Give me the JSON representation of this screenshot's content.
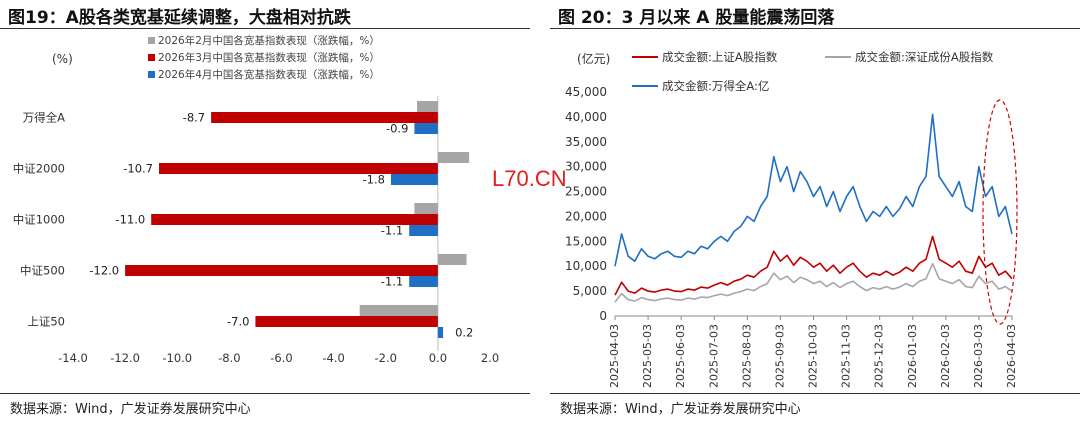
{
  "watermark": "L70.CN",
  "left_panel": {
    "title": "图19：A股各类宽基延续调整，大盘相对抗跌",
    "source": "数据来源：Wind，广发证券发展研究中心"
  },
  "right_panel": {
    "title": "图 20：3 月以来 A 股量能震荡回落",
    "source": "数据来源：Wind，广发证券发展研究中心"
  },
  "colors": {
    "gray": "#a6a6a6",
    "red": "#c00000",
    "blue": "#1f6fc5",
    "ellipse": "#d00000"
  },
  "chart_data": [
    {
      "type": "bar",
      "orientation": "horizontal",
      "title": "A股各类宽基延续调整，大盘相对抗跌",
      "unit": "(%)",
      "categories": [
        "万得全A",
        "中证2000",
        "中证1000",
        "中证500",
        "上证50"
      ],
      "series": [
        {
          "name": "2026年2月中国各宽基指数表现（涨跌幅，%）",
          "color": "#a6a6a6",
          "values": [
            -0.8,
            1.2,
            -0.9,
            1.1,
            -3.0
          ],
          "labels": [
            null,
            null,
            null,
            null,
            null
          ]
        },
        {
          "name": "2026年3月中国各宽基指数表现（涨跌幅，%）",
          "color": "#c00000",
          "values": [
            -8.7,
            -10.7,
            -11.0,
            -12.0,
            -7.0
          ],
          "labels": [
            "-8.7",
            "-10.7",
            "-11.0",
            "-12.0",
            "-7.0"
          ]
        },
        {
          "name": "2026年4月中国各宽基指数表现（涨跌幅，%）",
          "color": "#1f6fc5",
          "values": [
            -0.9,
            -1.8,
            -1.1,
            -1.1,
            0.2
          ],
          "labels": [
            "-0.9",
            "-1.8",
            "-1.1",
            "-1.1",
            "0.2"
          ]
        }
      ],
      "xlim": [
        -14,
        2
      ],
      "xticks": [
        -14,
        -12,
        -10,
        -8,
        -6,
        -4,
        -2,
        0,
        2
      ],
      "xtick_labels": [
        "-14.0",
        "-12.0",
        "-10.0",
        "-8.0",
        "-6.0",
        "-4.0",
        "-2.0",
        "0.0",
        "2.0"
      ]
    },
    {
      "type": "line",
      "title": "3 月以来 A 股量能震荡回落",
      "unit": "(亿元)",
      "ylim": [
        0,
        45000
      ],
      "yticks": [
        0,
        5000,
        10000,
        15000,
        20000,
        25000,
        30000,
        35000,
        40000,
        45000
      ],
      "ytick_labels": [
        "0",
        "5,000",
        "10,000",
        "15,000",
        "20,000",
        "25,000",
        "30,000",
        "35,000",
        "40,000",
        "45,000"
      ],
      "xlabels": [
        "2025-04-03",
        "2025-05-03",
        "2025-06-03",
        "2025-07-03",
        "2025-08-03",
        "2025-09-03",
        "2025-10-03",
        "2025-11-03",
        "2025-12-03",
        "2026-01-03",
        "2026-02-03",
        "2026-03-03",
        "2026-04-03"
      ],
      "x": [
        0,
        0.2,
        0.4,
        0.6,
        0.8,
        1,
        1.2,
        1.4,
        1.6,
        1.8,
        2,
        2.2,
        2.4,
        2.6,
        2.8,
        3,
        3.2,
        3.4,
        3.6,
        3.8,
        4,
        4.2,
        4.4,
        4.6,
        4.8,
        5,
        5.2,
        5.4,
        5.6,
        5.8,
        6,
        6.2,
        6.4,
        6.6,
        6.8,
        7,
        7.2,
        7.4,
        7.6,
        7.8,
        8,
        8.2,
        8.4,
        8.6,
        8.8,
        9,
        9.2,
        9.4,
        9.6,
        9.8,
        10,
        10.2,
        10.4,
        10.6,
        10.8,
        11,
        11.2,
        11.4,
        11.6,
        11.8,
        12
      ],
      "series": [
        {
          "name": "成交金额:万得全A:亿",
          "color": "#1f6fc5",
          "values": [
            10000,
            16500,
            12000,
            11000,
            13500,
            12000,
            11500,
            12500,
            13000,
            12000,
            11800,
            13000,
            12500,
            14000,
            13500,
            15000,
            16000,
            15000,
            17000,
            18000,
            20000,
            19000,
            22000,
            24000,
            32000,
            27000,
            30000,
            25000,
            29000,
            27000,
            24000,
            26000,
            22000,
            25000,
            21000,
            24000,
            26000,
            22000,
            19000,
            21000,
            20000,
            22000,
            20000,
            21500,
            24000,
            22000,
            26000,
            28000,
            40500,
            28000,
            26000,
            24000,
            27000,
            22000,
            21000,
            30000,
            24000,
            26000,
            20000,
            22000,
            16500
          ]
        },
        {
          "name": "成交金额:上证A股指数",
          "color": "#c00000",
          "values": [
            4200,
            6800,
            5000,
            4600,
            5600,
            5000,
            4800,
            5200,
            5400,
            5000,
            4900,
            5400,
            5200,
            5800,
            5600,
            6200,
            6700,
            6200,
            7000,
            7400,
            8200,
            7800,
            9000,
            9800,
            13000,
            11000,
            12200,
            10200,
            11800,
            11000,
            9800,
            10600,
            9000,
            10200,
            8600,
            9800,
            10600,
            9000,
            7800,
            8600,
            8200,
            9000,
            8200,
            8800,
            9800,
            9000,
            10600,
            11400,
            16000,
            11400,
            10600,
            9800,
            11000,
            9000,
            8600,
            12000,
            9800,
            10600,
            8200,
            9000,
            7500
          ]
        },
        {
          "name": "成交金额:深证成份A股指数",
          "color": "#a6a6a6",
          "values": [
            2800,
            4500,
            3300,
            3000,
            3700,
            3300,
            3100,
            3400,
            3600,
            3300,
            3200,
            3600,
            3400,
            3800,
            3700,
            4100,
            4400,
            4100,
            4600,
            4900,
            5400,
            5100,
            5900,
            6500,
            8600,
            7300,
            8000,
            6700,
            7800,
            7300,
            6500,
            7000,
            5900,
            6700,
            5700,
            6500,
            7000,
            5900,
            5100,
            5700,
            5400,
            5900,
            5400,
            5800,
            6500,
            5900,
            7000,
            7500,
            10500,
            7500,
            7000,
            6500,
            7300,
            5900,
            5700,
            8000,
            6500,
            7000,
            5400,
            5900,
            5000
          ]
        }
      ]
    }
  ]
}
